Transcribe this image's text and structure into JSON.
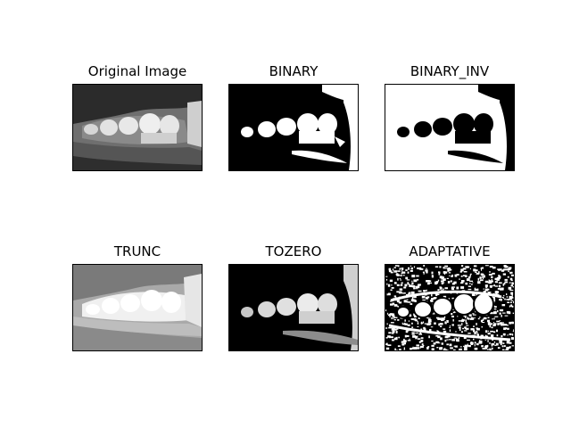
{
  "panels": [
    {
      "title": "Original Image",
      "mode": "original"
    },
    {
      "title": "BINARY",
      "mode": "binary"
    },
    {
      "title": "BINARY_INV",
      "mode": "binary-inv"
    },
    {
      "title": "TRUNC",
      "mode": "trunc"
    },
    {
      "title": "TOZERO",
      "mode": "tozero"
    },
    {
      "title": "ADAPTATIVE",
      "mode": "adaptive"
    }
  ]
}
